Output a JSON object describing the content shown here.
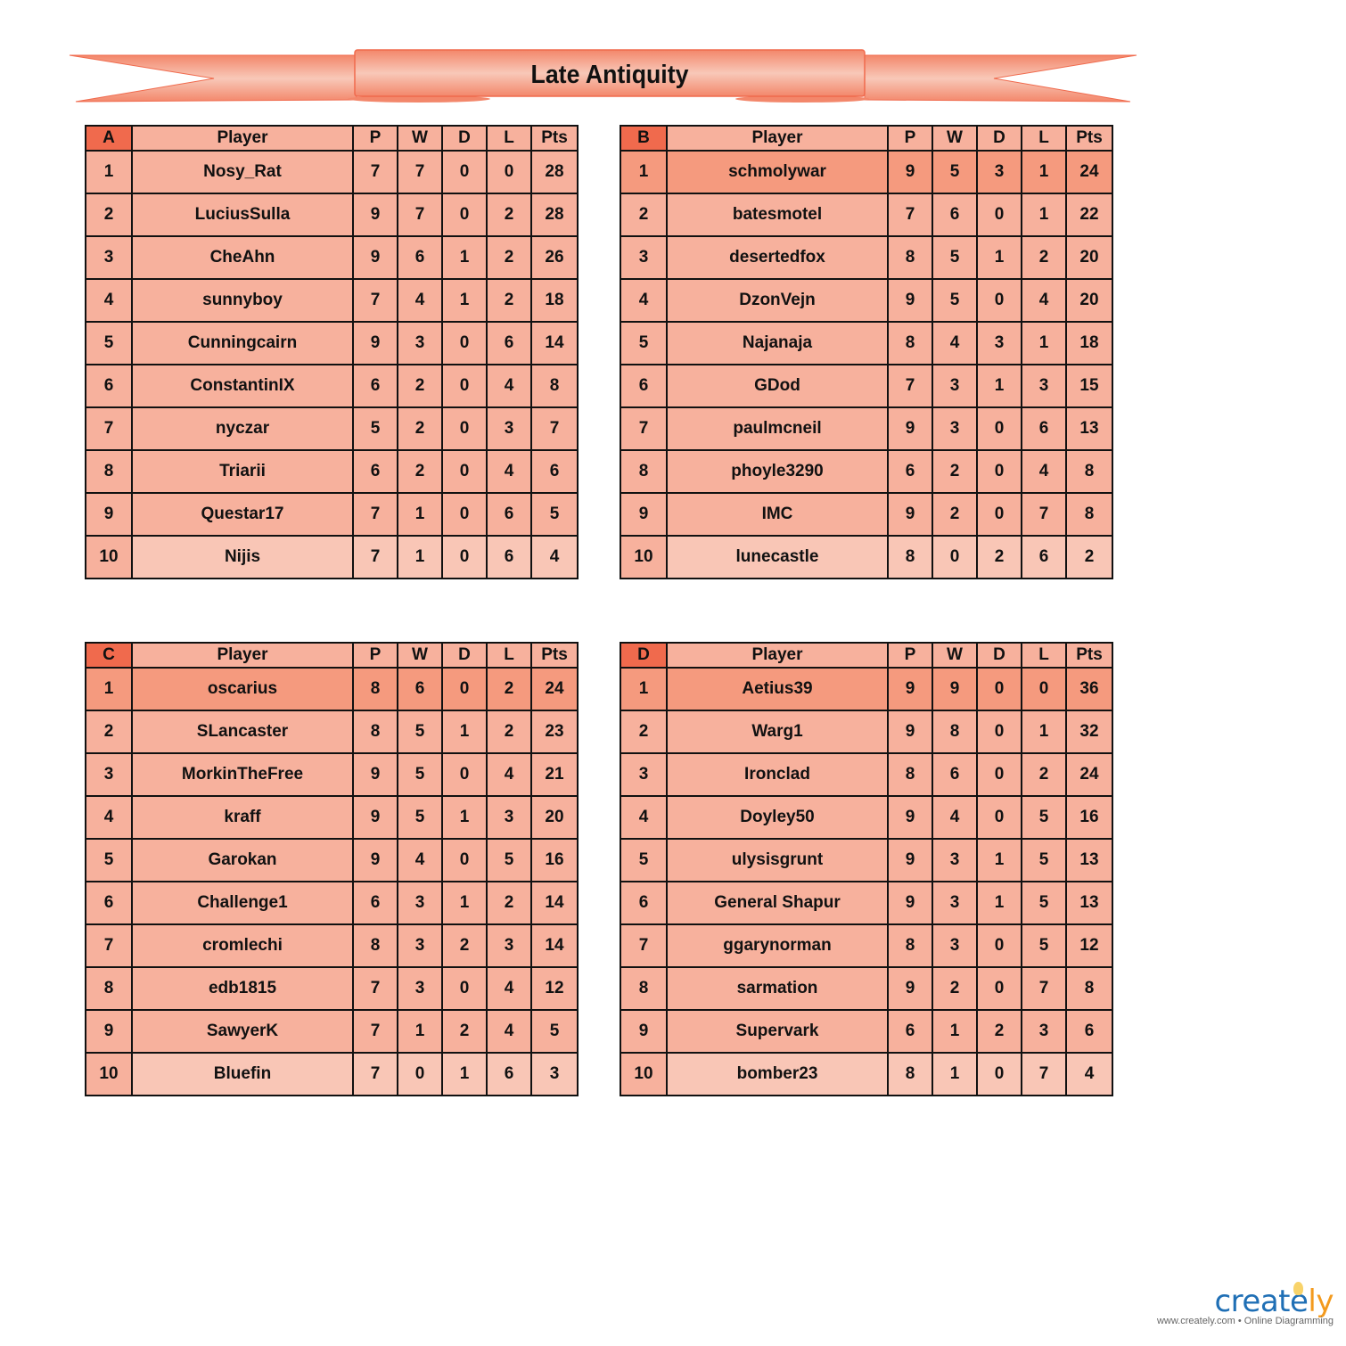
{
  "title": "Late Antiquity",
  "colors": {
    "header_letter": "#F06A4D",
    "cell": "#F7B19D",
    "leader": "#F59A7E",
    "last": "#F9C6B6",
    "banner": "#F3876B"
  },
  "columns": [
    "Player",
    "P",
    "W",
    "D",
    "L",
    "Pts"
  ],
  "groups": [
    {
      "letter": "A",
      "rows": [
        [
          "1",
          "Nosy_Rat",
          "7",
          "7",
          "0",
          "0",
          "28"
        ],
        [
          "2",
          "LuciusSulla",
          "9",
          "7",
          "0",
          "2",
          "28"
        ],
        [
          "3",
          "CheAhn",
          "9",
          "6",
          "1",
          "2",
          "26"
        ],
        [
          "4",
          "sunnyboy",
          "7",
          "4",
          "1",
          "2",
          "18"
        ],
        [
          "5",
          "Cunningcairn",
          "9",
          "3",
          "0",
          "6",
          "14"
        ],
        [
          "6",
          "ConstantinIX",
          "6",
          "2",
          "0",
          "4",
          "8"
        ],
        [
          "7",
          "nyczar",
          "5",
          "2",
          "0",
          "3",
          "7"
        ],
        [
          "8",
          "Triarii",
          "6",
          "2",
          "0",
          "4",
          "6"
        ],
        [
          "9",
          "Questar17",
          "7",
          "1",
          "0",
          "6",
          "5"
        ],
        [
          "10",
          "Nijis",
          "7",
          "1",
          "0",
          "6",
          "4"
        ]
      ]
    },
    {
      "letter": "B",
      "rows": [
        [
          "1",
          "schmolywar",
          "9",
          "5",
          "3",
          "1",
          "24"
        ],
        [
          "2",
          "batesmotel",
          "7",
          "6",
          "0",
          "1",
          "22"
        ],
        [
          "3",
          "desertedfox",
          "8",
          "5",
          "1",
          "2",
          "20"
        ],
        [
          "4",
          "DzonVejn",
          "9",
          "5",
          "0",
          "4",
          "20"
        ],
        [
          "5",
          "Najanaja",
          "8",
          "4",
          "3",
          "1",
          "18"
        ],
        [
          "6",
          "GDod",
          "7",
          "3",
          "1",
          "3",
          "15"
        ],
        [
          "7",
          "paulmcneil",
          "9",
          "3",
          "0",
          "6",
          "13"
        ],
        [
          "8",
          "phoyle3290",
          "6",
          "2",
          "0",
          "4",
          "8"
        ],
        [
          "9",
          "IMC",
          "9",
          "2",
          "0",
          "7",
          "8"
        ],
        [
          "10",
          "lunecastle",
          "8",
          "0",
          "2",
          "6",
          "2"
        ]
      ]
    },
    {
      "letter": "C",
      "rows": [
        [
          "1",
          "oscarius",
          "8",
          "6",
          "0",
          "2",
          "24"
        ],
        [
          "2",
          "SLancaster",
          "8",
          "5",
          "1",
          "2",
          "23"
        ],
        [
          "3",
          "MorkinTheFree",
          "9",
          "5",
          "0",
          "4",
          "21"
        ],
        [
          "4",
          "kraff",
          "9",
          "5",
          "1",
          "3",
          "20"
        ],
        [
          "5",
          "Garokan",
          "9",
          "4",
          "0",
          "5",
          "16"
        ],
        [
          "6",
          "Challenge1",
          "6",
          "3",
          "1",
          "2",
          "14"
        ],
        [
          "7",
          "cromlechi",
          "8",
          "3",
          "2",
          "3",
          "14"
        ],
        [
          "8",
          "edb1815",
          "7",
          "3",
          "0",
          "4",
          "12"
        ],
        [
          "9",
          "SawyerK",
          "7",
          "1",
          "2",
          "4",
          "5"
        ],
        [
          "10",
          "Bluefin",
          "7",
          "0",
          "1",
          "6",
          "3"
        ]
      ]
    },
    {
      "letter": "D",
      "rows": [
        [
          "1",
          "Aetius39",
          "9",
          "9",
          "0",
          "0",
          "36"
        ],
        [
          "2",
          "Warg1",
          "9",
          "8",
          "0",
          "1",
          "32"
        ],
        [
          "3",
          "Ironclad",
          "8",
          "6",
          "0",
          "2",
          "24"
        ],
        [
          "4",
          "Doyley50",
          "9",
          "4",
          "0",
          "5",
          "16"
        ],
        [
          "5",
          "ulysisgrunt",
          "9",
          "3",
          "1",
          "5",
          "13"
        ],
        [
          "6",
          "General Shapur",
          "9",
          "3",
          "1",
          "5",
          "13"
        ],
        [
          "7",
          "ggarynorman",
          "8",
          "3",
          "0",
          "5",
          "12"
        ],
        [
          "8",
          "sarmation",
          "9",
          "2",
          "0",
          "7",
          "8"
        ],
        [
          "9",
          "Supervark",
          "6",
          "1",
          "2",
          "3",
          "6"
        ],
        [
          "10",
          "bomber23",
          "8",
          "1",
          "0",
          "7",
          "4"
        ]
      ]
    }
  ],
  "branding": {
    "logo_main": "create",
    "logo_accent": "ly",
    "tagline": "www.creately.com • Online Diagramming"
  }
}
